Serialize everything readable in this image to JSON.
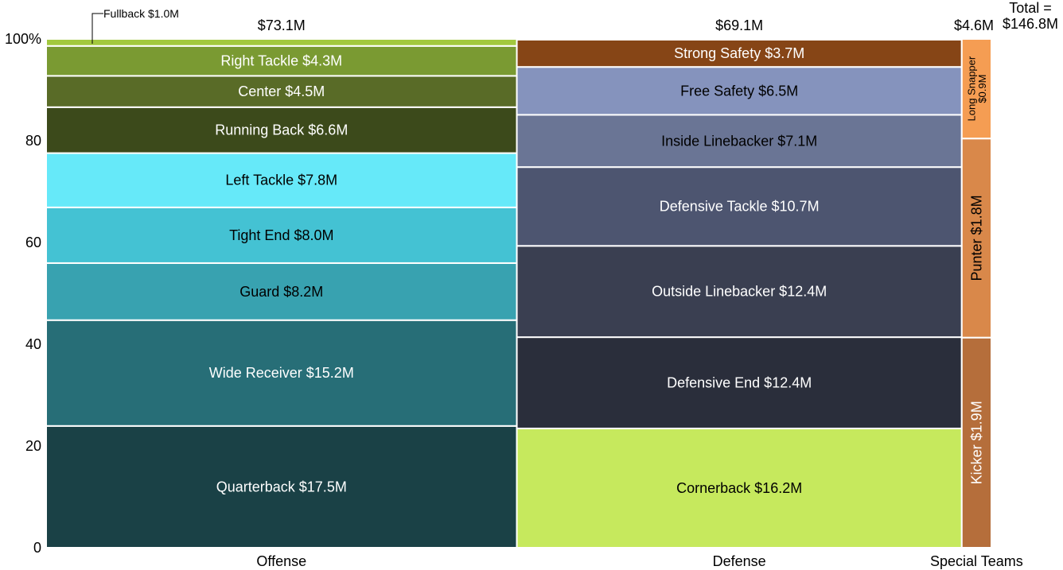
{
  "chart_data": {
    "type": "mekko",
    "y_axis": {
      "ticks": [
        0,
        20,
        40,
        60,
        80,
        100
      ],
      "tick_labels": [
        "0",
        "20",
        "40",
        "60",
        "80",
        "100%"
      ],
      "ylim": [
        0,
        100
      ]
    },
    "total_label": "Total =\n$146.8M",
    "columns": [
      {
        "name": "Offense",
        "total": 73.1,
        "total_label": "$73.1M",
        "segments": [
          {
            "label": "Quarterback $17.5M",
            "value": 17.5,
            "color": "#1A4146",
            "text_color": "#ffffff"
          },
          {
            "label": "Wide Receiver $15.2M",
            "value": 15.2,
            "color": "#276E77",
            "text_color": "#ffffff"
          },
          {
            "label": "Guard $8.2M",
            "value": 8.2,
            "color": "#38A2B0",
            "text_color": "#000000"
          },
          {
            "label": "Tight End $8.0M",
            "value": 8.0,
            "color": "#44C2D3",
            "text_color": "#000000"
          },
          {
            "label": "Left Tackle $7.8M",
            "value": 7.8,
            "color": "#66E9F9",
            "text_color": "#000000"
          },
          {
            "label": "Running Back $6.6M",
            "value": 6.6,
            "color": "#3C4A1B",
            "text_color": "#ffffff"
          },
          {
            "label": "Center $4.5M",
            "value": 4.5,
            "color": "#596B27",
            "text_color": "#ffffff"
          },
          {
            "label": "Right Tackle $4.3M",
            "value": 4.3,
            "color": "#7A9A32",
            "text_color": "#ffffff"
          },
          {
            "label": "Fullback $1.0M",
            "value": 1.0,
            "color": "#A2C83E",
            "text_color": "#000000",
            "callout": true
          }
        ]
      },
      {
        "name": "Defense",
        "total": 69.1,
        "total_label": "$69.1M",
        "segments": [
          {
            "label": "Cornerback $16.2M",
            "value": 16.2,
            "color": "#C6E95D",
            "text_color": "#000000"
          },
          {
            "label": "Defensive End $12.4M",
            "value": 12.4,
            "color": "#2A2E3B",
            "text_color": "#ffffff"
          },
          {
            "label": "Outside Linebacker $12.4M",
            "value": 12.4,
            "color": "#3A3F51",
            "text_color": "#ffffff"
          },
          {
            "label": "Defensive Tackle $10.7M",
            "value": 10.7,
            "color": "#4D5570",
            "text_color": "#ffffff"
          },
          {
            "label": "Inside Linebacker $7.1M",
            "value": 7.1,
            "color": "#6A7595",
            "text_color": "#000000"
          },
          {
            "label": "Free Safety $6.5M",
            "value": 6.5,
            "color": "#8593BD",
            "text_color": "#000000"
          },
          {
            "label": "Strong Safety $3.7M",
            "value": 3.7,
            "color": "#864516",
            "text_color": "#ffffff"
          }
        ]
      },
      {
        "name": "Special Teams",
        "total": 4.6,
        "total_label": "$4.6M",
        "segments": [
          {
            "label": "Kicker $1.9M",
            "value": 1.9,
            "color": "#B56E3B",
            "text_color": "#ffffff",
            "vertical": true
          },
          {
            "label": "Punter $1.8M",
            "value": 1.8,
            "color": "#D9884A",
            "text_color": "#000000",
            "vertical": true
          },
          {
            "label": "Long Snapper\n$0.9M",
            "value": 0.9,
            "color": "#F59D53",
            "text_color": "#000000",
            "vertical": true
          }
        ]
      }
    ]
  }
}
